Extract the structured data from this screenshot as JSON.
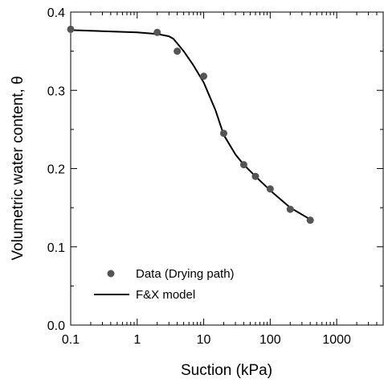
{
  "chart_data": {
    "type": "scatter",
    "title": "",
    "xlabel": "Suction (kPa)",
    "ylabel": "Volumetric water content, θ",
    "x_scale": "log",
    "xlim": [
      0.1,
      5000
    ],
    "ylim": [
      0.0,
      0.4
    ],
    "x_ticks": [
      {
        "value": 0.1,
        "label": "0.1"
      },
      {
        "value": 1,
        "label": "1"
      },
      {
        "value": 10,
        "label": "10"
      },
      {
        "value": 100,
        "label": "100"
      },
      {
        "value": 1000,
        "label": "1000"
      }
    ],
    "y_ticks": [
      {
        "value": 0.0,
        "label": "0.0"
      },
      {
        "value": 0.1,
        "label": "0.1"
      },
      {
        "value": 0.2,
        "label": "0.2"
      },
      {
        "value": 0.3,
        "label": "0.3"
      },
      {
        "value": 0.4,
        "label": "0.4"
      }
    ],
    "grid": false,
    "legend_position": "bottom-left",
    "series": [
      {
        "name": "Data (Drying path)",
        "kind": "scatter",
        "color": "#555555",
        "points": [
          {
            "x": 0.1,
            "y": 0.378
          },
          {
            "x": 2,
            "y": 0.374
          },
          {
            "x": 4,
            "y": 0.35
          },
          {
            "x": 10,
            "y": 0.318
          },
          {
            "x": 20,
            "y": 0.245
          },
          {
            "x": 40,
            "y": 0.205
          },
          {
            "x": 60,
            "y": 0.19
          },
          {
            "x": 100,
            "y": 0.174
          },
          {
            "x": 200,
            "y": 0.148
          },
          {
            "x": 400,
            "y": 0.134
          }
        ]
      },
      {
        "name": "F&X model",
        "kind": "line",
        "color": "#000000",
        "points": [
          {
            "x": 0.1,
            "y": 0.377
          },
          {
            "x": 1,
            "y": 0.374
          },
          {
            "x": 2,
            "y": 0.372
          },
          {
            "x": 3,
            "y": 0.369
          },
          {
            "x": 3.5,
            "y": 0.366
          },
          {
            "x": 4,
            "y": 0.36
          },
          {
            "x": 5,
            "y": 0.35
          },
          {
            "x": 7,
            "y": 0.332
          },
          {
            "x": 10,
            "y": 0.31
          },
          {
            "x": 15,
            "y": 0.275
          },
          {
            "x": 20,
            "y": 0.243
          },
          {
            "x": 30,
            "y": 0.218
          },
          {
            "x": 40,
            "y": 0.205
          },
          {
            "x": 60,
            "y": 0.19
          },
          {
            "x": 100,
            "y": 0.172
          },
          {
            "x": 200,
            "y": 0.15
          },
          {
            "x": 400,
            "y": 0.135
          }
        ]
      }
    ]
  }
}
